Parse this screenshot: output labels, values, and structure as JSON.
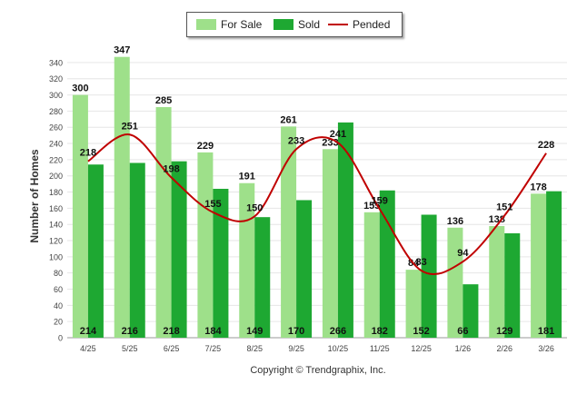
{
  "chart_data": {
    "type": "bar",
    "title": "",
    "xlabel": "",
    "ylabel": "Number of Homes",
    "ylim": [
      0,
      350
    ],
    "ytick_step": 20,
    "categories": [
      "4/25",
      "5/25",
      "6/25",
      "7/25",
      "8/25",
      "9/25",
      "10/25",
      "11/25",
      "12/25",
      "1/26",
      "2/26",
      "3/26"
    ],
    "series": [
      {
        "name": "For Sale",
        "type": "bar",
        "color": "#9ee08a",
        "values": [
          300,
          347,
          285,
          229,
          191,
          261,
          233,
          155,
          84,
          136,
          138,
          178
        ]
      },
      {
        "name": "Sold",
        "type": "bar",
        "color": "#1ea832",
        "values": [
          214,
          216,
          218,
          184,
          149,
          170,
          266,
          182,
          152,
          66,
          129,
          181
        ]
      },
      {
        "name": "Pended",
        "type": "line",
        "color": "#c00000",
        "values": [
          218,
          251,
          198,
          155,
          150,
          233,
          241,
          159,
          83,
          94,
          151,
          228
        ]
      }
    ],
    "legend_position": "top-center"
  },
  "copyright": "Copyright © Trendgraphix, Inc."
}
